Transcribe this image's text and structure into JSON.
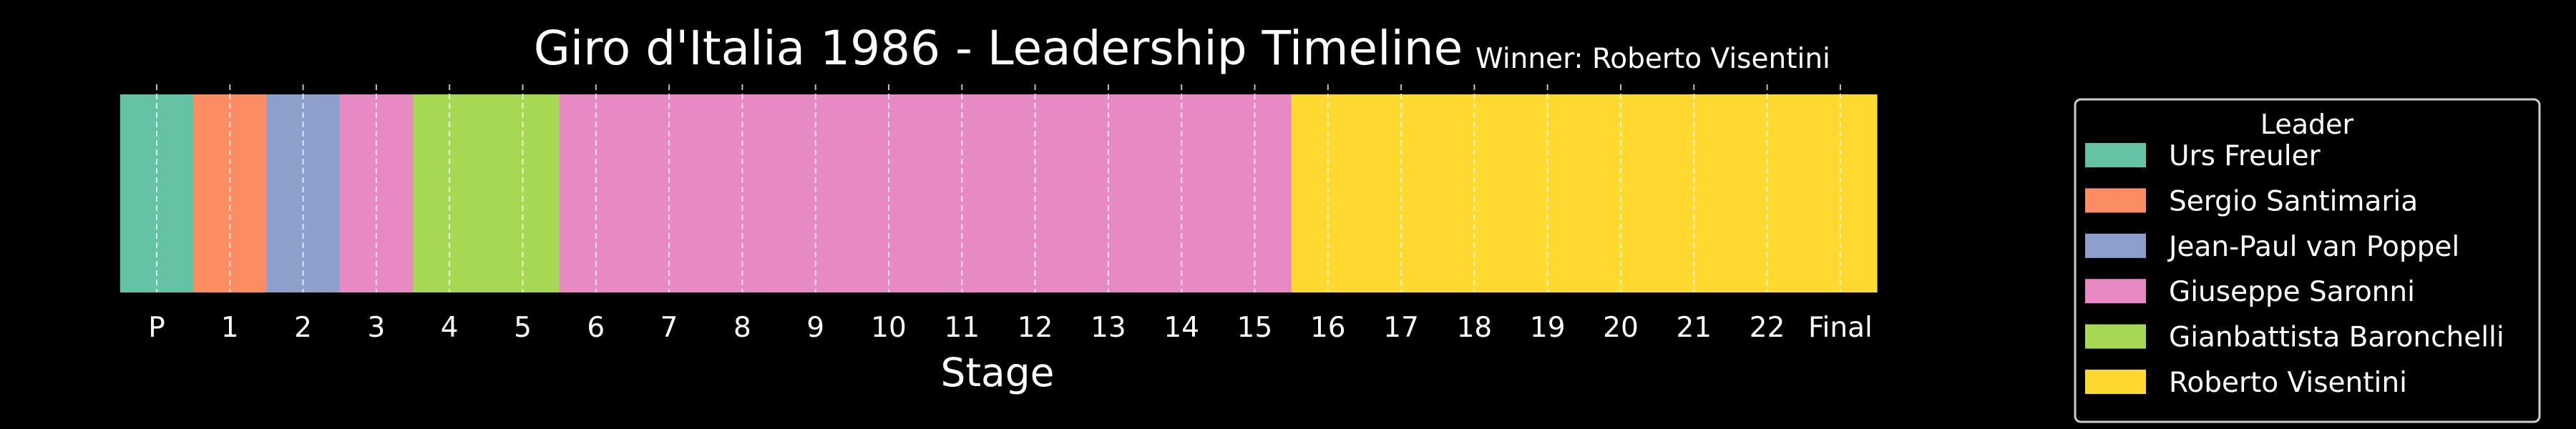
{
  "chart_data": {
    "type": "bar",
    "orientation": "horizontal-timeline",
    "title": "Giro d'Italia 1986 - Leadership Timeline",
    "annotation": "Winner: Roberto Visentini",
    "xlabel": "Stage",
    "ylabel": "",
    "grid": "vertical dashed",
    "legend_title": "Leader",
    "legend_position": "right",
    "categories": [
      "P",
      "1",
      "2",
      "3",
      "4",
      "5",
      "6",
      "7",
      "8",
      "9",
      "10",
      "11",
      "12",
      "13",
      "14",
      "15",
      "16",
      "17",
      "18",
      "19",
      "20",
      "21",
      "22",
      "Final"
    ],
    "leaders": [
      {
        "name": "Urs Freuler",
        "color": "#66c2a5"
      },
      {
        "name": "Sergio Santimaria",
        "color": "#fc8d62"
      },
      {
        "name": "Jean-Paul van Poppel",
        "color": "#8da0cb"
      },
      {
        "name": "Giuseppe Saronni",
        "color": "#e78ac3"
      },
      {
        "name": "Gianbattista Baronchelli",
        "color": "#a6d854"
      },
      {
        "name": "Roberto Visentini",
        "color": "#ffd92f"
      }
    ],
    "leader_by_stage": [
      "Urs Freuler",
      "Sergio Santimaria",
      "Jean-Paul van Poppel",
      "Giuseppe Saronni",
      "Gianbattista Baronchelli",
      "Gianbattista Baronchelli",
      "Giuseppe Saronni",
      "Giuseppe Saronni",
      "Giuseppe Saronni",
      "Giuseppe Saronni",
      "Giuseppe Saronni",
      "Giuseppe Saronni",
      "Giuseppe Saronni",
      "Giuseppe Saronni",
      "Giuseppe Saronni",
      "Giuseppe Saronni",
      "Roberto Visentini",
      "Roberto Visentini",
      "Roberto Visentini",
      "Roberto Visentini",
      "Roberto Visentini",
      "Roberto Visentini",
      "Roberto Visentini",
      "Roberto Visentini"
    ]
  }
}
